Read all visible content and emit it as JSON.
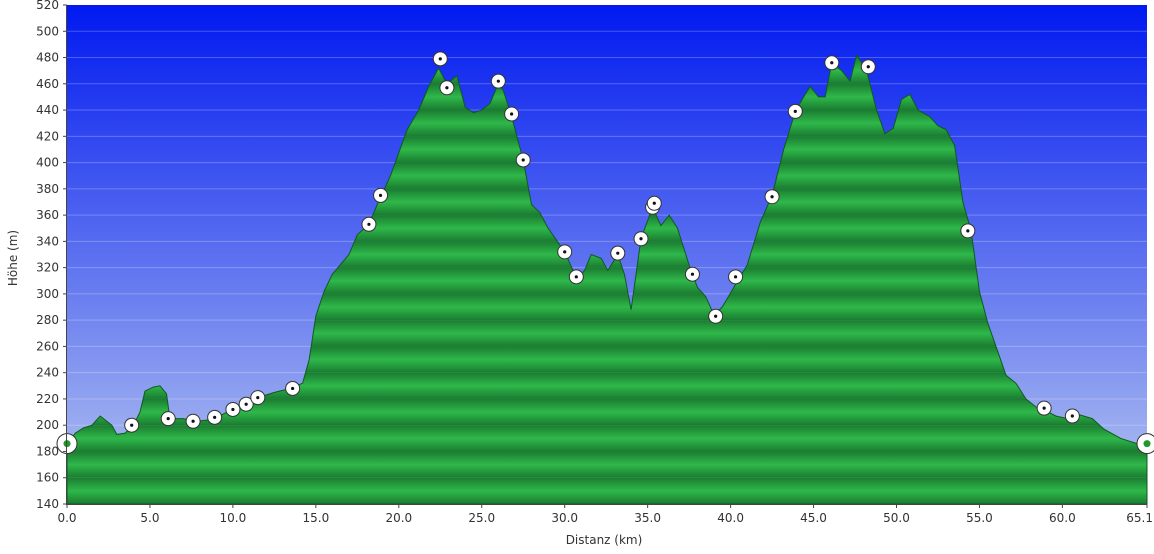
{
  "chart_data": {
    "type": "area",
    "xlabel": "Distanz  (km)",
    "ylabel": "Höhe (m)",
    "xlim": [
      0,
      65.1
    ],
    "ylim": [
      140,
      520
    ],
    "y_ticks": [
      "140",
      "160",
      "180",
      "200",
      "220",
      "240",
      "260",
      "280",
      "300",
      "320",
      "340",
      "360",
      "380",
      "400",
      "420",
      "440",
      "460",
      "480",
      "500",
      "520"
    ],
    "x_ticks": [
      {
        "value": 0,
        "label": "0.0"
      },
      {
        "value": 5,
        "label": "5.0"
      },
      {
        "value": 10,
        "label": "10.0"
      },
      {
        "value": 15,
        "label": "15.0"
      },
      {
        "value": 20,
        "label": "20.0"
      },
      {
        "value": 25,
        "label": "25.0"
      },
      {
        "value": 30,
        "label": "30.0"
      },
      {
        "value": 35,
        "label": "35.0"
      },
      {
        "value": 40,
        "label": "40.0"
      },
      {
        "value": 45,
        "label": "45.0"
      },
      {
        "value": 50,
        "label": "50.0"
      },
      {
        "value": 55,
        "label": "55.0"
      },
      {
        "value": 60,
        "label": "60.0"
      },
      {
        "value": 65.1,
        "label": "65.1"
      }
    ],
    "grid": true,
    "colors": {
      "sky_top": "#0019f0",
      "sky_bottom": "#b6c6f0",
      "fill_light": "#2fb84a",
      "fill_dark": "#1a7c30",
      "outline": "#0f5a1f",
      "marker": "#ffffff",
      "endpoint_dot": "#1f9a2a"
    },
    "profile": [
      [
        0,
        186
      ],
      [
        0.5,
        194
      ],
      [
        1.0,
        198
      ],
      [
        1.5,
        200
      ],
      [
        2.0,
        207
      ],
      [
        2.7,
        200
      ],
      [
        3.0,
        193
      ],
      [
        3.5,
        194
      ],
      [
        4.0,
        200
      ],
      [
        4.4,
        210
      ],
      [
        4.7,
        226
      ],
      [
        5.2,
        229
      ],
      [
        5.6,
        230
      ],
      [
        6.0,
        224
      ],
      [
        6.2,
        205
      ],
      [
        7.0,
        205
      ],
      [
        7.8,
        203
      ],
      [
        8.5,
        204
      ],
      [
        9.0,
        206
      ],
      [
        10.0,
        212
      ],
      [
        10.8,
        216
      ],
      [
        11.5,
        221
      ],
      [
        12.5,
        225
      ],
      [
        13.5,
        228
      ],
      [
        14.2,
        232
      ],
      [
        14.6,
        250
      ],
      [
        15.0,
        283
      ],
      [
        15.5,
        302
      ],
      [
        16.0,
        315
      ],
      [
        17.0,
        330
      ],
      [
        17.5,
        345
      ],
      [
        18.2,
        353
      ],
      [
        18.8,
        371
      ],
      [
        19.5,
        390
      ],
      [
        20.5,
        425
      ],
      [
        21.2,
        440
      ],
      [
        21.8,
        458
      ],
      [
        22.4,
        472
      ],
      [
        22.9,
        460
      ],
      [
        23.5,
        466
      ],
      [
        24.0,
        442
      ],
      [
        24.5,
        438
      ],
      [
        25.0,
        440
      ],
      [
        25.5,
        445
      ],
      [
        26.0,
        460
      ],
      [
        26.3,
        455
      ],
      [
        26.8,
        435
      ],
      [
        27.5,
        402
      ],
      [
        28.0,
        368
      ],
      [
        28.5,
        362
      ],
      [
        29.0,
        350
      ],
      [
        30.0,
        332
      ],
      [
        30.5,
        318
      ],
      [
        30.8,
        312
      ],
      [
        31.2,
        318
      ],
      [
        31.6,
        330
      ],
      [
        32.2,
        327
      ],
      [
        32.6,
        318
      ],
      [
        33.2,
        330
      ],
      [
        33.6,
        315
      ],
      [
        34.0,
        288
      ],
      [
        34.6,
        342
      ],
      [
        35.3,
        366
      ],
      [
        35.8,
        352
      ],
      [
        36.3,
        360
      ],
      [
        36.8,
        350
      ],
      [
        37.5,
        322
      ],
      [
        38.0,
        305
      ],
      [
        38.5,
        298
      ],
      [
        39.0,
        284
      ],
      [
        39.5,
        290
      ],
      [
        40.2,
        305
      ],
      [
        41.0,
        322
      ],
      [
        41.8,
        355
      ],
      [
        42.5,
        375
      ],
      [
        43.2,
        410
      ],
      [
        43.9,
        439
      ],
      [
        44.5,
        452
      ],
      [
        44.8,
        458
      ],
      [
        45.3,
        450
      ],
      [
        45.7,
        450
      ],
      [
        46.1,
        476
      ],
      [
        46.7,
        470
      ],
      [
        47.2,
        462
      ],
      [
        47.6,
        482
      ],
      [
        48.2,
        470
      ],
      [
        48.8,
        440
      ],
      [
        49.3,
        422
      ],
      [
        49.8,
        426
      ],
      [
        50.3,
        448
      ],
      [
        50.8,
        452
      ],
      [
        51.3,
        440
      ],
      [
        52.0,
        435
      ],
      [
        52.5,
        428
      ],
      [
        53.0,
        425
      ],
      [
        53.5,
        413
      ],
      [
        54.0,
        370
      ],
      [
        54.5,
        348
      ],
      [
        55.0,
        302
      ],
      [
        55.5,
        278
      ],
      [
        56.0,
        260
      ],
      [
        56.6,
        238
      ],
      [
        57.2,
        232
      ],
      [
        57.8,
        220
      ],
      [
        58.5,
        213
      ],
      [
        59.0,
        211
      ],
      [
        59.6,
        207
      ],
      [
        60.3,
        205
      ],
      [
        61.0,
        208
      ],
      [
        61.8,
        205
      ],
      [
        62.5,
        197
      ],
      [
        63.5,
        190
      ],
      [
        64.5,
        186
      ],
      [
        65.1,
        186
      ]
    ],
    "waypoints": [
      [
        3.9,
        200
      ],
      [
        6.1,
        205
      ],
      [
        7.6,
        203
      ],
      [
        8.9,
        206
      ],
      [
        10.0,
        212
      ],
      [
        10.8,
        216
      ],
      [
        11.5,
        221
      ],
      [
        13.6,
        228
      ],
      [
        18.2,
        353
      ],
      [
        18.9,
        375
      ],
      [
        22.5,
        479
      ],
      [
        22.9,
        457
      ],
      [
        26.0,
        462
      ],
      [
        26.8,
        437
      ],
      [
        27.5,
        402
      ],
      [
        30.0,
        332
      ],
      [
        30.7,
        313
      ],
      [
        33.2,
        331
      ],
      [
        34.6,
        342
      ],
      [
        35.3,
        366
      ],
      [
        35.4,
        369
      ],
      [
        37.7,
        315
      ],
      [
        39.1,
        283
      ],
      [
        40.3,
        313
      ],
      [
        42.5,
        374
      ],
      [
        43.9,
        439
      ],
      [
        46.1,
        476
      ],
      [
        48.3,
        473
      ],
      [
        54.3,
        348
      ],
      [
        58.9,
        213
      ],
      [
        60.6,
        207
      ]
    ],
    "endpoints": [
      [
        0,
        186
      ],
      [
        65.1,
        186
      ]
    ]
  }
}
